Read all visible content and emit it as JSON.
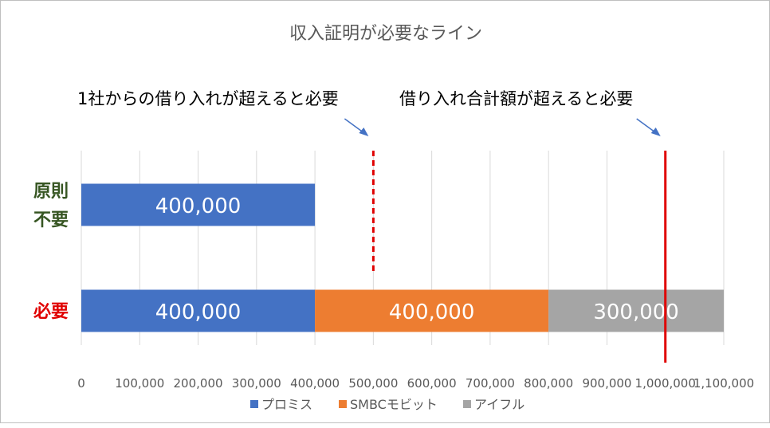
{
  "chart_data": {
    "type": "bar",
    "orientation": "horizontal",
    "stacked": true,
    "title": "収入証明が必要なライン",
    "categories": [
      "原則\n不要",
      "必要"
    ],
    "category_colors": [
      "#375623",
      "#e00000"
    ],
    "series": [
      {
        "name": "プロミス",
        "color": "#4472c4",
        "values": [
          400000,
          400000
        ],
        "labels": [
          "400,000",
          "400,000"
        ]
      },
      {
        "name": "SMBCモビット",
        "color": "#ed7d31",
        "values": [
          0,
          400000
        ],
        "labels": [
          "",
          "400,000"
        ]
      },
      {
        "name": "アイフル",
        "color": "#a5a5a5",
        "values": [
          0,
          300000
        ],
        "labels": [
          "",
          "300,000"
        ]
      }
    ],
    "xlim": [
      0,
      1100000
    ],
    "x_ticks": [
      0,
      100000,
      200000,
      300000,
      400000,
      500000,
      600000,
      700000,
      800000,
      900000,
      1000000,
      1100000
    ],
    "x_tick_labels": [
      "0",
      "100,000",
      "200,000",
      "300,000",
      "400,000",
      "500,000",
      "600,000",
      "700,000",
      "800,000",
      "900,000",
      "1,000,000",
      "1,100,000"
    ],
    "grid": true,
    "legend_position": "bottom",
    "reference_lines": [
      {
        "value": 500000,
        "style": "dashed",
        "color": "#e00000",
        "label": "1社からの借り入れが超えると必要"
      },
      {
        "value": 1000000,
        "style": "solid",
        "color": "#e00000",
        "label": "借り入れ合計額が超えると必要"
      }
    ]
  }
}
